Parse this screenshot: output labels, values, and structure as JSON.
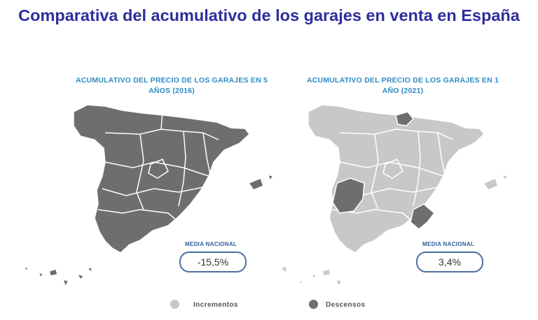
{
  "title": "Comparativa del acumulativo de los garajes en venta en España",
  "maps": [
    {
      "title": "ACUMULATIVO DEL PRECIO DE LOS GARAJES EN 5 AÑOS (2016)",
      "media_label": "MEDIA NACIONAL",
      "media_value": "-15,5%"
    },
    {
      "title": "ACUMULATIVO DEL PRECIO DE LOS GARAJES EN 1 AÑO (2021)",
      "media_label": "MEDIA NACIONAL",
      "media_value": "3,4%"
    }
  ],
  "legend": {
    "increase_label": "Incrementos",
    "decrease_label": "Descensos"
  },
  "colors": {
    "title": "#2e2e9e",
    "map_title": "#2e8bc4",
    "increase": "#c8c8c8",
    "decrease": "#6e6e6e"
  }
}
